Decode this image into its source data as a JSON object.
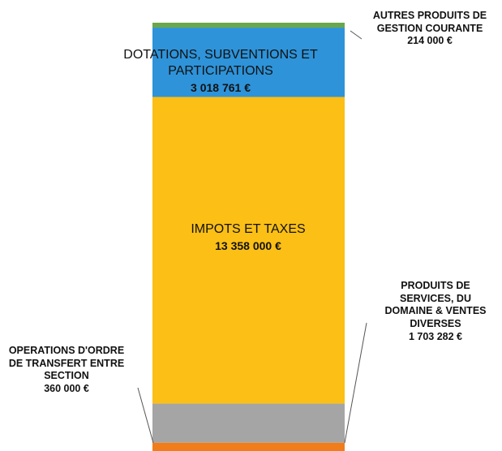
{
  "chart_data": {
    "type": "stacked_bar",
    "series": [
      {
        "name": "OPERATIONS D'ORDRE DE TRANSFERT ENTRE SECTION",
        "color": "#f07d1a",
        "values": [
          360000
        ],
        "value_labels": [
          "360 000 €"
        ]
      },
      {
        "name": "PRODUITS DE SERVICES, DU DOMAINE & VENTES DIVERSES",
        "color": "#a5a5a5",
        "values": [
          1703282
        ],
        "value_labels": [
          "1 703 282 €"
        ]
      },
      {
        "name": "IMPOTS ET TAXES",
        "color": "#fbbf16",
        "values": [
          13358000
        ],
        "value_labels": [
          "13 358 000 €"
        ]
      },
      {
        "name": "DOTATIONS, SUBVENTIONS ET PARTICIPATIONS",
        "color": "#2e93d9",
        "values": [
          3018761
        ],
        "value_labels": [
          "3 018 761 €"
        ]
      },
      {
        "name": "AUTRES PRODUITS DE GESTION COURANTE",
        "color": "#6aa74a",
        "values": [
          214000
        ],
        "value_labels": [
          "214 000 €"
        ]
      }
    ]
  }
}
